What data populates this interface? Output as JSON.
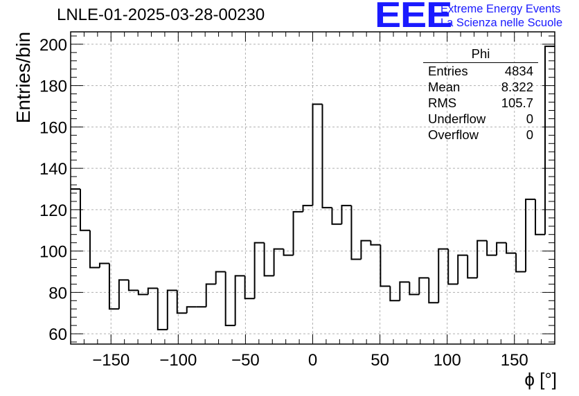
{
  "title": "LNLE-01-2025-03-28-00230",
  "logo": {
    "mark": "EEE",
    "line1": "Extreme Energy Events",
    "line2": "La Scienza nelle Scuole",
    "color": "#1a1aff"
  },
  "stats": {
    "name": "Phi",
    "rows": [
      {
        "label": "Entries",
        "value": "4834"
      },
      {
        "label": "Mean",
        "value": "8.322"
      },
      {
        "label": "RMS",
        "value": "105.7"
      },
      {
        "label": "Underflow",
        "value": "0"
      },
      {
        "label": "Overflow",
        "value": "0"
      }
    ]
  },
  "chart_data": {
    "type": "bar",
    "subtype": "step-histogram",
    "title": "LNLE-01-2025-03-28-00230",
    "xlabel": "ϕ [°]",
    "ylabel": "Entries/bin",
    "xlim": [
      -180,
      180
    ],
    "ylim": [
      55,
      206
    ],
    "grid": true,
    "bin_edges_start": -180,
    "bin_width": 7.2,
    "values": [
      130,
      110,
      92,
      94,
      72,
      86,
      81,
      79,
      82,
      62,
      81,
      70,
      73,
      73,
      84,
      90,
      64,
      88,
      77,
      104,
      88,
      101,
      98,
      119,
      122,
      171,
      121,
      113,
      122,
      96,
      105,
      103,
      83,
      76,
      85,
      79,
      87,
      75,
      101,
      84,
      98,
      87,
      105,
      98,
      104,
      99,
      90,
      125,
      108,
      199
    ],
    "x_ticks": [
      -150,
      -100,
      -50,
      0,
      50,
      100,
      150
    ],
    "x_tick_labels": [
      "−150",
      "−100",
      "−50",
      "0",
      "50",
      "100",
      "150"
    ],
    "y_ticks": [
      60,
      80,
      100,
      120,
      140,
      160,
      180,
      200
    ],
    "y_tick_labels": [
      "60",
      "80",
      "100",
      "120",
      "140",
      "160",
      "180",
      "200"
    ],
    "line_color": "#000000",
    "grid_color": "#b0b0b0"
  }
}
